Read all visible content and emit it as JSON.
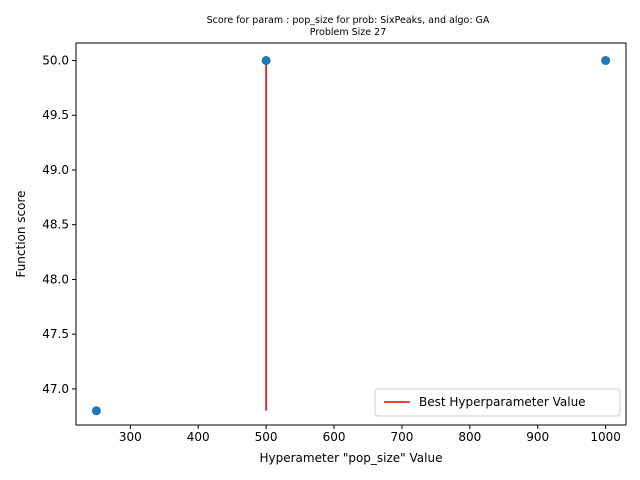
{
  "chart_data": {
    "type": "scatter",
    "title": "Score for param : pop_size for prob: SixPeaks, and algo: GA",
    "subtitle": "Problem Size 27",
    "xlabel": "Hyperameter \"pop_size\" Value",
    "ylabel": "Function score",
    "xlim": [
      220,
      1030
    ],
    "ylim": [
      46.67,
      50.16
    ],
    "xticks": [
      300,
      400,
      500,
      600,
      700,
      800,
      900,
      1000
    ],
    "yticks": [
      47.0,
      47.5,
      48.0,
      48.5,
      49.0,
      49.5,
      50.0
    ],
    "ytick_labels": [
      "47.0",
      "47.5",
      "48.0",
      "48.5",
      "49.0",
      "49.5",
      "50.0"
    ],
    "points": [
      {
        "x": 250,
        "y": 46.8
      },
      {
        "x": 500,
        "y": 50.0
      },
      {
        "x": 1000,
        "y": 50.0
      }
    ],
    "point_color": "#1f77b4",
    "best_line": {
      "x": 500,
      "y_from": 46.8,
      "y_to": 50.0,
      "color": "#ff0000"
    },
    "legend": {
      "label": "Best Hyperparameter Value",
      "placement": "lower-right"
    },
    "grid": false
  }
}
